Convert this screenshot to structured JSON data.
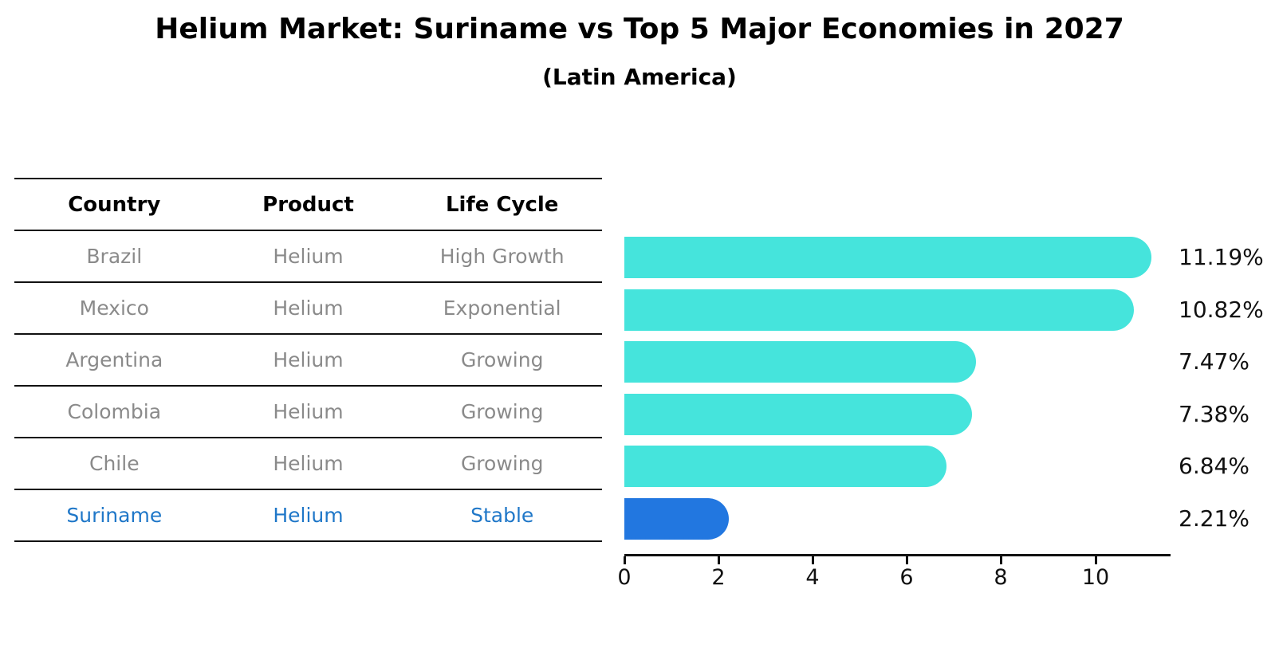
{
  "title": "Helium Market: Suriname vs Top 5 Major Economies in 2027",
  "subtitle": "(Latin America)",
  "colors": {
    "bar_default": "#45E4DC",
    "bar_highlight": "#2277E0",
    "row_text": "#8A8A8A",
    "highlight_text": "#1F77C8",
    "header_text": "#000000",
    "axis": "#111111"
  },
  "table": {
    "headers": [
      "Country",
      "Product",
      "Life Cycle"
    ],
    "rows": [
      {
        "country": "Brazil",
        "product": "Helium",
        "life_cycle": "High Growth",
        "highlight": false
      },
      {
        "country": "Mexico",
        "product": "Helium",
        "life_cycle": "Exponential",
        "highlight": false
      },
      {
        "country": "Argentina",
        "product": "Helium",
        "life_cycle": "Growing",
        "highlight": false
      },
      {
        "country": "Colombia",
        "product": "Helium",
        "life_cycle": "Growing",
        "highlight": false
      },
      {
        "country": "Chile",
        "product": "Helium",
        "life_cycle": "Growing",
        "highlight": false
      },
      {
        "country": "Suriname",
        "product": "Helium",
        "life_cycle": "Stable",
        "highlight": true
      }
    ]
  },
  "chart_data": {
    "type": "bar",
    "orientation": "horizontal",
    "title": "Helium Market: Suriname vs Top 5 Major Economies in 2027",
    "subtitle": "(Latin America)",
    "categories": [
      "Brazil",
      "Mexico",
      "Argentina",
      "Colombia",
      "Chile",
      "Suriname"
    ],
    "values": [
      11.19,
      10.82,
      7.47,
      7.38,
      6.84,
      2.21
    ],
    "value_labels": [
      "11.19%",
      "10.82%",
      "7.47%",
      "7.38%",
      "6.84%",
      "2.21%"
    ],
    "x_ticks": [
      0,
      2,
      4,
      6,
      8,
      10
    ],
    "xlim": [
      0,
      11.6
    ],
    "xlabel": "",
    "ylabel": "",
    "grid": false,
    "legend": false,
    "highlight_category": "Suriname"
  }
}
